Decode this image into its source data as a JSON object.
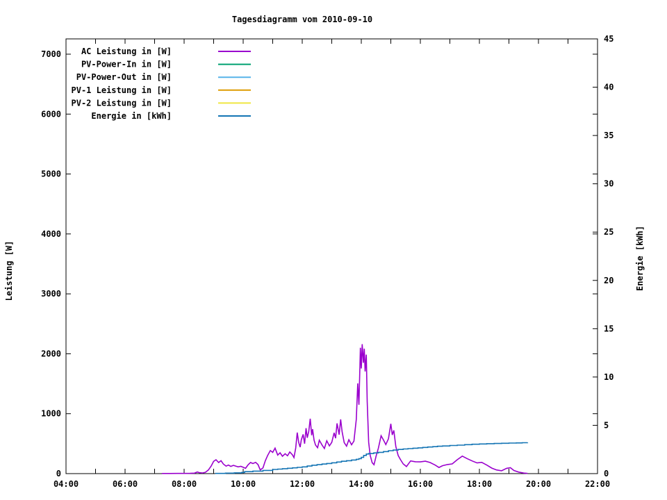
{
  "colors": {
    "foreground": "#000000",
    "background": "#ffffff"
  },
  "chart_data": {
    "type": "line",
    "title": "Tagesdiagramm vom 2010-09-10",
    "legend_position": "top-left-inside",
    "grid": false,
    "x_axis": {
      "label": "",
      "unit": "time",
      "range_hours": [
        4,
        22
      ],
      "tick_hours": [
        4,
        6,
        8,
        10,
        12,
        14,
        16,
        18,
        20,
        22
      ],
      "tick_labels": [
        "04:00",
        "06:00",
        "08:00",
        "10:00",
        "12:00",
        "14:00",
        "16:00",
        "18:00",
        "20:00",
        "22:00"
      ],
      "minor_tick_step_hours": 1
    },
    "y_axis": {
      "label": "Leistung [W]",
      "range": [
        0,
        7255
      ],
      "ticks": [
        0,
        1000,
        2000,
        3000,
        4000,
        5000,
        6000,
        7000
      ],
      "tick_labels": [
        "0",
        "1000",
        "2000",
        "3000",
        "4000",
        "5000",
        "6000",
        "7000"
      ]
    },
    "y2_axis": {
      "label": "Energie [kWh]",
      "range": [
        0,
        45
      ],
      "ticks": [
        0,
        5,
        10,
        15,
        20,
        25,
        30,
        35,
        40,
        45
      ],
      "tick_labels": [
        "0",
        "5",
        "10",
        "15",
        "20",
        "25",
        "30",
        "35",
        "40",
        "45"
      ]
    },
    "series": [
      {
        "name": "AC Leistung in [W]",
        "color": "#9a00cd",
        "axis": "y",
        "style": "line",
        "points": [
          [
            7.25,
            2
          ],
          [
            7.5,
            2
          ],
          [
            7.8,
            3
          ],
          [
            8.05,
            3
          ],
          [
            8.2,
            5
          ],
          [
            8.35,
            8
          ],
          [
            8.45,
            28
          ],
          [
            8.52,
            15
          ],
          [
            8.62,
            10
          ],
          [
            8.72,
            22
          ],
          [
            8.82,
            60
          ],
          [
            8.92,
            130
          ],
          [
            9.0,
            205
          ],
          [
            9.08,
            232
          ],
          [
            9.17,
            185
          ],
          [
            9.25,
            215
          ],
          [
            9.33,
            160
          ],
          [
            9.42,
            125
          ],
          [
            9.5,
            142
          ],
          [
            9.58,
            120
          ],
          [
            9.67,
            138
          ],
          [
            9.75,
            125
          ],
          [
            9.83,
            112
          ],
          [
            9.92,
            122
          ],
          [
            10.0,
            105
          ],
          [
            10.08,
            88
          ],
          [
            10.17,
            150
          ],
          [
            10.25,
            185
          ],
          [
            10.33,
            168
          ],
          [
            10.42,
            188
          ],
          [
            10.5,
            152
          ],
          [
            10.58,
            62
          ],
          [
            10.67,
            95
          ],
          [
            10.75,
            215
          ],
          [
            10.83,
            305
          ],
          [
            10.92,
            385
          ],
          [
            11.0,
            355
          ],
          [
            11.08,
            425
          ],
          [
            11.17,
            310
          ],
          [
            11.25,
            348
          ],
          [
            11.33,
            290
          ],
          [
            11.42,
            332
          ],
          [
            11.5,
            298
          ],
          [
            11.58,
            362
          ],
          [
            11.67,
            312
          ],
          [
            11.72,
            268
          ],
          [
            11.78,
            425
          ],
          [
            11.83,
            685
          ],
          [
            11.88,
            520
          ],
          [
            11.93,
            442
          ],
          [
            11.97,
            565
          ],
          [
            12.03,
            655
          ],
          [
            12.08,
            500
          ],
          [
            12.13,
            758
          ],
          [
            12.17,
            598
          ],
          [
            12.22,
            705
          ],
          [
            12.27,
            915
          ],
          [
            12.32,
            640
          ],
          [
            12.35,
            742
          ],
          [
            12.4,
            560
          ],
          [
            12.45,
            478
          ],
          [
            12.52,
            432
          ],
          [
            12.58,
            558
          ],
          [
            12.67,
            478
          ],
          [
            12.75,
            420
          ],
          [
            12.83,
            548
          ],
          [
            12.92,
            462
          ],
          [
            13.0,
            522
          ],
          [
            13.08,
            682
          ],
          [
            13.13,
            590
          ],
          [
            13.18,
            838
          ],
          [
            13.25,
            650
          ],
          [
            13.3,
            905
          ],
          [
            13.35,
            698
          ],
          [
            13.42,
            518
          ],
          [
            13.5,
            458
          ],
          [
            13.58,
            565
          ],
          [
            13.67,
            482
          ],
          [
            13.75,
            542
          ],
          [
            13.83,
            905
          ],
          [
            13.88,
            1505
          ],
          [
            13.92,
            1150
          ],
          [
            13.97,
            2100
          ],
          [
            14.0,
            1755
          ],
          [
            14.03,
            2160
          ],
          [
            14.07,
            1850
          ],
          [
            14.1,
            2085
          ],
          [
            14.13,
            1705
          ],
          [
            14.17,
            1985
          ],
          [
            14.2,
            1205
          ],
          [
            14.25,
            525
          ],
          [
            14.3,
            305
          ],
          [
            14.37,
            182
          ],
          [
            14.43,
            148
          ],
          [
            14.5,
            292
          ],
          [
            14.58,
            425
          ],
          [
            14.67,
            632
          ],
          [
            14.75,
            562
          ],
          [
            14.83,
            485
          ],
          [
            14.92,
            582
          ],
          [
            15.0,
            832
          ],
          [
            15.05,
            645
          ],
          [
            15.1,
            722
          ],
          [
            15.17,
            452
          ],
          [
            15.25,
            302
          ],
          [
            15.33,
            232
          ],
          [
            15.42,
            162
          ],
          [
            15.53,
            118
          ],
          [
            15.67,
            212
          ],
          [
            15.83,
            198
          ],
          [
            16.0,
            196
          ],
          [
            16.17,
            208
          ],
          [
            16.33,
            186
          ],
          [
            16.5,
            142
          ],
          [
            16.63,
            102
          ],
          [
            16.75,
            132
          ],
          [
            16.92,
            152
          ],
          [
            17.08,
            162
          ],
          [
            17.25,
            232
          ],
          [
            17.42,
            292
          ],
          [
            17.58,
            252
          ],
          [
            17.75,
            212
          ],
          [
            17.92,
            178
          ],
          [
            18.08,
            188
          ],
          [
            18.25,
            142
          ],
          [
            18.42,
            92
          ],
          [
            18.58,
            62
          ],
          [
            18.75,
            48
          ],
          [
            18.92,
            88
          ],
          [
            19.05,
            98
          ],
          [
            19.17,
            52
          ],
          [
            19.33,
            26
          ],
          [
            19.5,
            9
          ],
          [
            19.63,
            3
          ]
        ]
      },
      {
        "name": "PV-Power-In in [W]",
        "color": "#00a070",
        "axis": "y",
        "style": "line",
        "points": []
      },
      {
        "name": "PV-Power-Out in [W]",
        "color": "#56b4e9",
        "axis": "y",
        "style": "line",
        "points": []
      },
      {
        "name": "PV-1 Leistung in [W]",
        "color": "#dd9c00",
        "axis": "y",
        "style": "line",
        "points": []
      },
      {
        "name": "PV-2 Leistung in [W]",
        "color": "#efe642",
        "axis": "y",
        "style": "line",
        "points": []
      },
      {
        "name": "Energie in [kWh]",
        "color": "#1374b4",
        "axis": "y2",
        "style": "steps",
        "points": [
          [
            9.05,
            0.02
          ],
          [
            9.4,
            0.05
          ],
          [
            9.7,
            0.08
          ],
          [
            9.95,
            0.12
          ],
          [
            10.05,
            0.2
          ],
          [
            10.33,
            0.26
          ],
          [
            10.67,
            0.33
          ],
          [
            11.0,
            0.43
          ],
          [
            11.17,
            0.47
          ],
          [
            11.33,
            0.51
          ],
          [
            11.5,
            0.55
          ],
          [
            11.67,
            0.6
          ],
          [
            11.83,
            0.65
          ],
          [
            12.0,
            0.7
          ],
          [
            12.17,
            0.78
          ],
          [
            12.33,
            0.87
          ],
          [
            12.5,
            0.93
          ],
          [
            12.67,
            0.99
          ],
          [
            12.83,
            1.05
          ],
          [
            13.0,
            1.12
          ],
          [
            13.17,
            1.2
          ],
          [
            13.33,
            1.28
          ],
          [
            13.5,
            1.34
          ],
          [
            13.67,
            1.41
          ],
          [
            13.83,
            1.48
          ],
          [
            13.92,
            1.55
          ],
          [
            14.0,
            1.68
          ],
          [
            14.08,
            1.88
          ],
          [
            14.17,
            2.03
          ],
          [
            14.25,
            2.08
          ],
          [
            14.42,
            2.14
          ],
          [
            14.58,
            2.2
          ],
          [
            14.75,
            2.28
          ],
          [
            14.92,
            2.37
          ],
          [
            15.08,
            2.44
          ],
          [
            15.25,
            2.5
          ],
          [
            15.42,
            2.55
          ],
          [
            15.58,
            2.59
          ],
          [
            15.75,
            2.63
          ],
          [
            15.92,
            2.67
          ],
          [
            16.08,
            2.71
          ],
          [
            16.25,
            2.75
          ],
          [
            16.42,
            2.79
          ],
          [
            16.58,
            2.83
          ],
          [
            16.75,
            2.86
          ],
          [
            17.0,
            2.91
          ],
          [
            17.25,
            2.95
          ],
          [
            17.5,
            3.0
          ],
          [
            17.75,
            3.04
          ],
          [
            18.0,
            3.07
          ],
          [
            18.25,
            3.1
          ],
          [
            18.5,
            3.12
          ],
          [
            18.75,
            3.14
          ],
          [
            19.0,
            3.16
          ],
          [
            19.25,
            3.18
          ],
          [
            19.45,
            3.2
          ],
          [
            19.63,
            3.21
          ]
        ]
      }
    ]
  }
}
